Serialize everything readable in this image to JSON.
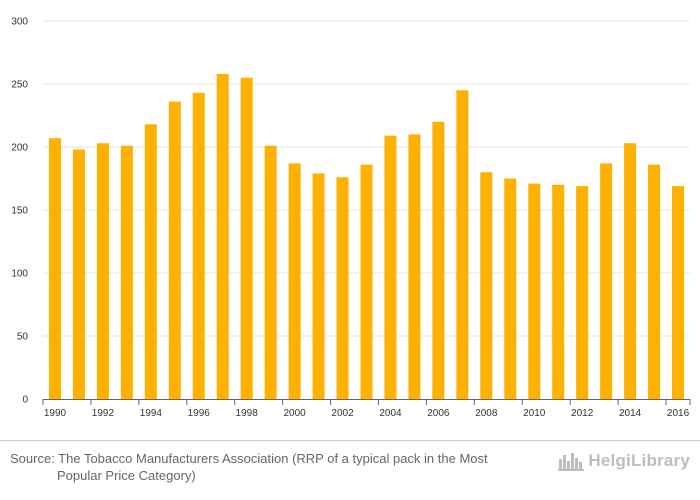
{
  "chart_data": {
    "type": "bar",
    "title": "",
    "xlabel": "",
    "ylabel": "",
    "ylim": [
      0,
      300
    ],
    "yticks": [
      0,
      50,
      100,
      150,
      200,
      250,
      300
    ],
    "x_tick_labels": [
      "1990",
      "1992",
      "1994",
      "1996",
      "1998",
      "2000",
      "2002",
      "2004",
      "2006",
      "2008",
      "2010",
      "2012",
      "2014",
      "2016"
    ],
    "categories": [
      1990,
      1991,
      1992,
      1993,
      1994,
      1995,
      1996,
      1997,
      1998,
      1999,
      2000,
      2001,
      2002,
      2003,
      2004,
      2005,
      2006,
      2007,
      2008,
      2009,
      2010,
      2011,
      2012,
      2013,
      2014,
      2015,
      2016
    ],
    "values": [
      207,
      198,
      203,
      201,
      218,
      236,
      243,
      258,
      255,
      201,
      187,
      179,
      176,
      186,
      209,
      210,
      220,
      245,
      180,
      175,
      171,
      170,
      169,
      187,
      203,
      186,
      169
    ],
    "bar_color": "#ffb000",
    "grid": true,
    "legend": "none"
  },
  "footer": {
    "source_line1": "Source: The Tobacco Manufacturers Association (RRP of a typical pack in the Most",
    "source_line2": "Popular Price Category)",
    "logo_text": "HelgiLibrary"
  },
  "colors": {
    "bar": "#ffb000",
    "grid": "#e5e5e5",
    "axis": "#666666",
    "text": "#333333"
  }
}
